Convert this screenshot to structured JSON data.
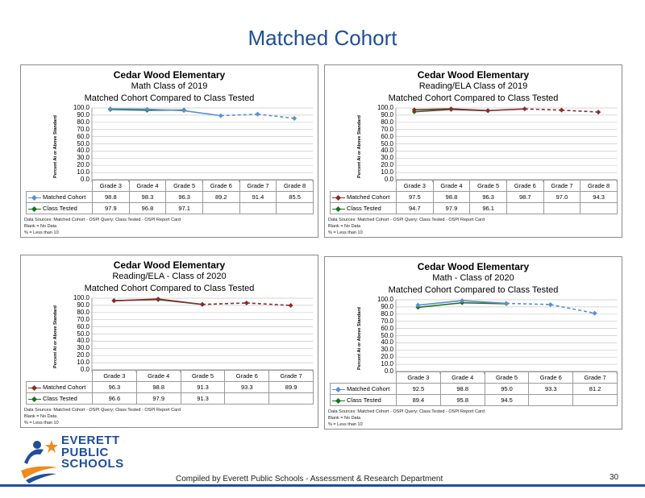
{
  "slide": {
    "title": "Matched Cohort",
    "footer": "Compiled  by Everett Public Schools - Assessment & Research Department",
    "page_number": "30",
    "logo": {
      "line1": "EVERETT",
      "line2": "PUBLIC",
      "line3": "SCHOOLS"
    }
  },
  "colors": {
    "matched_cohort_blue": "#5b8fd0",
    "matched_cohort_red": "#8b2a2a",
    "class_tested_green": "#1e6e23",
    "title_blue": "#1f4e9b"
  },
  "y_axis_label": "Percent At or Above Standard",
  "chart_data": [
    {
      "type": "line",
      "school": "Cedar Wood Elementary",
      "subtitle": "Math   Class of 2019",
      "title": "Matched Cohort Compared to Class Tested",
      "ylabel": "Percent At or Above Standard",
      "ylim": [
        0,
        100
      ],
      "yticks": [
        "100.0",
        "90.0",
        "80.0",
        "70.0",
        "60.0",
        "50.0",
        "40.0",
        "30.0",
        "20.0",
        "10.0",
        "0.0"
      ],
      "categories": [
        "Grade 3",
        "Grade 4",
        "Grade 5",
        "Grade 6",
        "Grade 7",
        "Grade 8"
      ],
      "dashed_from_index": 4,
      "series": [
        {
          "name": "Matched Cohort",
          "color": "#5b8fd0",
          "values": [
            98.8,
            98.3,
            96.3,
            89.2,
            91.4,
            85.5
          ],
          "labels": [
            "98.8",
            "98.3",
            "96.3",
            "89.2",
            "91.4",
            "85.5"
          ]
        },
        {
          "name": "Class Tested",
          "color": "#1e6e23",
          "values": [
            97.9,
            96.8,
            97.1,
            null,
            null,
            null
          ],
          "labels": [
            "97.9",
            "96.8",
            "97.1",
            "",
            "",
            ""
          ]
        }
      ],
      "notes": [
        "Data Sources: Matched Cohort - OSPI Query; Class Tested - OSPI Report Card",
        "Blank = No Data",
        "% = Less than 10"
      ]
    },
    {
      "type": "line",
      "school": "Cedar Wood Elementary",
      "subtitle": "Reading/ELA   Class of 2019",
      "title": "Matched Cohort Compared to Class Tested",
      "ylabel": "Percent At or Above Standard",
      "ylim": [
        0,
        100
      ],
      "yticks": [
        "100.0",
        "90.0",
        "80.0",
        "70.0",
        "60.0",
        "50.0",
        "40.0",
        "30.0",
        "20.0",
        "10.0",
        "0.0"
      ],
      "categories": [
        "Grade 3",
        "Grade 4",
        "Grade 5",
        "Grade 6",
        "Grade 7",
        "Grade 8"
      ],
      "dashed_from_index": 4,
      "series": [
        {
          "name": "Matched Cohort",
          "color": "#8b2a2a",
          "values": [
            97.5,
            98.8,
            96.3,
            98.7,
            97.0,
            94.3
          ],
          "labels": [
            "97.5",
            "98.8",
            "96.3",
            "98.7",
            "97.0",
            "94.3"
          ]
        },
        {
          "name": "Class Tested",
          "color": "#1e6e23",
          "values": [
            94.7,
            97.9,
            96.1,
            null,
            null,
            null
          ],
          "labels": [
            "94.7",
            "97.9",
            "96.1",
            "",
            "",
            ""
          ]
        }
      ],
      "notes": [
        "Data Sources: Matched Cohort - OSPI Query; Class Tested - OSPI Report Card",
        "Blank = No Data",
        "% = Less than 10"
      ]
    },
    {
      "type": "line",
      "school": "Cedar Wood Elementary",
      "subtitle": "Reading/ELA - Class of 2020",
      "title": "Matched Cohort Compared to Class Tested",
      "ylabel": "Percent At or Above Standard",
      "ylim": [
        0,
        100
      ],
      "yticks": [
        "100.0",
        "90.0",
        "80.0",
        "70.0",
        "60.0",
        "50.0",
        "40.0",
        "30.0",
        "20.0",
        "10.0",
        "0.0"
      ],
      "categories": [
        "Grade 3",
        "Grade 4",
        "Grade 5",
        "Grade 6",
        "Grade 7"
      ],
      "dashed_from_index": 3,
      "series": [
        {
          "name": "Matched Cohort",
          "color": "#8b2a2a",
          "values": [
            96.3,
            98.8,
            91.3,
            93.3,
            89.9
          ],
          "labels": [
            "96.3",
            "98.8",
            "91.3",
            "93.3",
            "89.9"
          ]
        },
        {
          "name": "Class Tested",
          "color": "#1e6e23",
          "values": [
            96.6,
            97.9,
            91.3,
            null,
            null
          ],
          "labels": [
            "96.6",
            "97.9",
            "91.3",
            "",
            ""
          ]
        }
      ],
      "notes": [
        "Data Sources: Matched Cohort - OSPI Query; Class Tested - OSPI Report Card",
        "Blank = No Data",
        "% = Less than 10"
      ]
    },
    {
      "type": "line",
      "school": "Cedar Wood Elementary",
      "subtitle": "Math - Class of 2020",
      "title": "Matched Cohort Compared to Class Tested",
      "ylabel": "Percent At or Above Standard",
      "ylim": [
        0,
        100
      ],
      "yticks": [
        "100.0",
        "90.0",
        "80.0",
        "70.0",
        "60.0",
        "50.0",
        "40.0",
        "30.0",
        "20.0",
        "10.0",
        "0.0"
      ],
      "categories": [
        "Grade 3",
        "Grade 4",
        "Grade 5",
        "Grade 6",
        "Grade 7"
      ],
      "dashed_from_index": 3,
      "series": [
        {
          "name": "Matched Cohort",
          "color": "#5b8fd0",
          "values": [
            92.5,
            98.8,
            95.0,
            93.3,
            81.2
          ],
          "labels": [
            "92.5",
            "98.8",
            "95.0",
            "93.3",
            "81.2"
          ]
        },
        {
          "name": "Class Tested",
          "color": "#1e6e23",
          "values": [
            89.4,
            95.8,
            94.5,
            null,
            null
          ],
          "labels": [
            "89.4",
            "95.8",
            "94.5",
            "",
            ""
          ]
        }
      ],
      "notes": [
        "Data Sources: Matched Cohort - OSPI Query; Class Tested - OSPI Report Card",
        "Blank = No Data",
        "% = Less than 10"
      ]
    }
  ]
}
